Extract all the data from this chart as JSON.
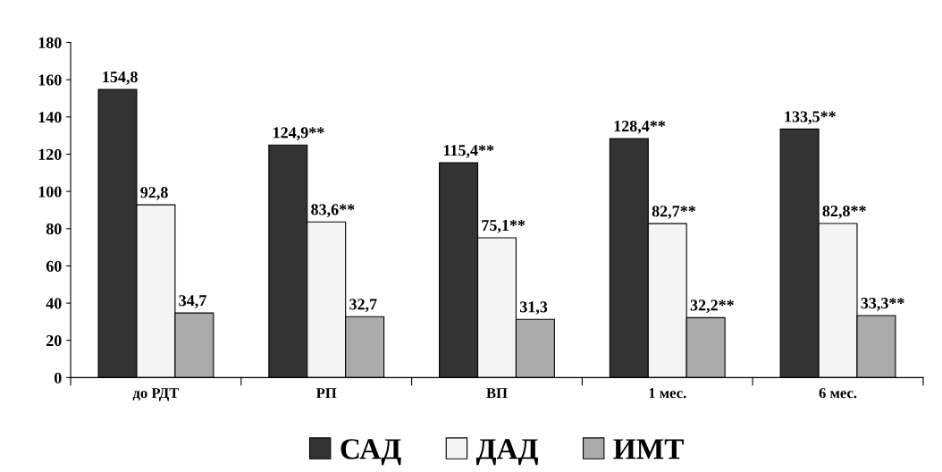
{
  "chart_data": {
    "type": "bar",
    "categories": [
      "до РДТ",
      "РП",
      "ВП",
      "1 мес.",
      "6 мес."
    ],
    "series": [
      {
        "name": "САД",
        "color": "#333333",
        "values": [
          154.8,
          124.9,
          115.4,
          128.4,
          133.5
        ],
        "value_labels": [
          "154,8",
          "124,9**",
          "115,4**",
          "128,4**",
          "133,5**"
        ]
      },
      {
        "name": "ДАД",
        "color": "#f4f4f4",
        "values": [
          92.8,
          83.6,
          75.1,
          82.7,
          82.8
        ],
        "value_labels": [
          "92,8",
          "83,6**",
          "75,1**",
          "82,7**",
          "82,8**"
        ]
      },
      {
        "name": "ИМТ",
        "color": "#ababab",
        "values": [
          34.7,
          32.7,
          31.3,
          32.2,
          33.3
        ],
        "value_labels": [
          "34,7",
          "32,7",
          "31,3",
          "32,2**",
          "33,3**"
        ]
      }
    ],
    "ylim": [
      0,
      180
    ],
    "yticks": [
      0,
      20,
      40,
      60,
      80,
      100,
      120,
      140,
      160,
      180
    ],
    "grid": false,
    "legend": "bottom"
  }
}
